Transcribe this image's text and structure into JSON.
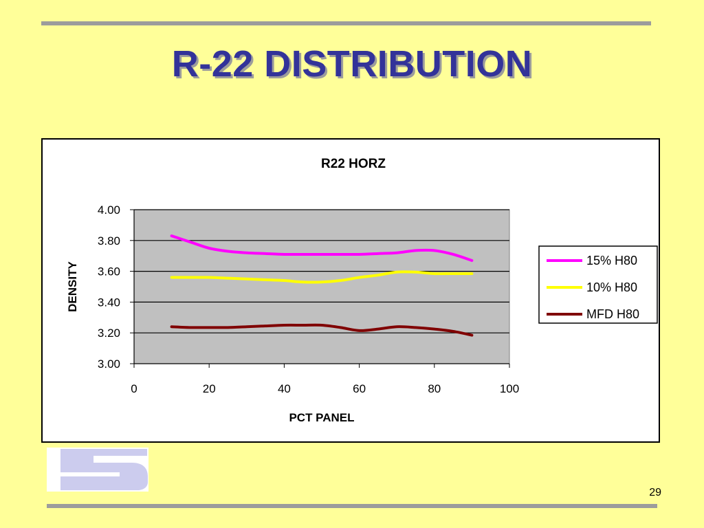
{
  "slide": {
    "title": "R-22 DISTRIBUTION",
    "page_number": "29"
  },
  "colors": {
    "background": "#ffff99",
    "title": "#333399",
    "rule": "#9c9c9c",
    "plot_area": "#c0c0c0",
    "logo": "#ccccee"
  },
  "chart_data": {
    "type": "line",
    "title": "R22  HORZ",
    "xlabel": "PCT PANEL",
    "ylabel": "DENSITY",
    "xlim": [
      0,
      100
    ],
    "ylim": [
      3.0,
      4.0
    ],
    "xticks": [
      0,
      20,
      40,
      60,
      80,
      100
    ],
    "yticks": [
      3.0,
      3.2,
      3.4,
      3.6,
      3.8,
      4.0
    ],
    "xtick_labels": [
      "0",
      "20",
      "40",
      "60",
      "80",
      "100"
    ],
    "ytick_labels": [
      "3.00",
      "3.20",
      "3.40",
      "3.60",
      "3.80",
      "4.00"
    ],
    "grid": "horizontal",
    "legend": "right",
    "x": [
      10,
      15,
      20,
      25,
      30,
      35,
      40,
      45,
      50,
      55,
      60,
      65,
      70,
      75,
      80,
      85,
      90
    ],
    "series": [
      {
        "name": "15% H80",
        "color": "#ff00ff",
        "values": [
          3.83,
          3.79,
          3.75,
          3.73,
          3.72,
          3.715,
          3.71,
          3.71,
          3.71,
          3.71,
          3.71,
          3.715,
          3.72,
          3.735,
          3.735,
          3.71,
          3.67
        ]
      },
      {
        "name": "10% H80",
        "color": "#ffff00",
        "values": [
          3.56,
          3.56,
          3.56,
          3.555,
          3.55,
          3.545,
          3.54,
          3.53,
          3.53,
          3.54,
          3.56,
          3.575,
          3.595,
          3.595,
          3.585,
          3.585,
          3.585
        ]
      },
      {
        "name": "MFD H80",
        "color": "#800000",
        "values": [
          3.24,
          3.235,
          3.235,
          3.235,
          3.24,
          3.245,
          3.25,
          3.25,
          3.25,
          3.235,
          3.215,
          3.225,
          3.24,
          3.235,
          3.225,
          3.21,
          3.185
        ]
      }
    ]
  }
}
